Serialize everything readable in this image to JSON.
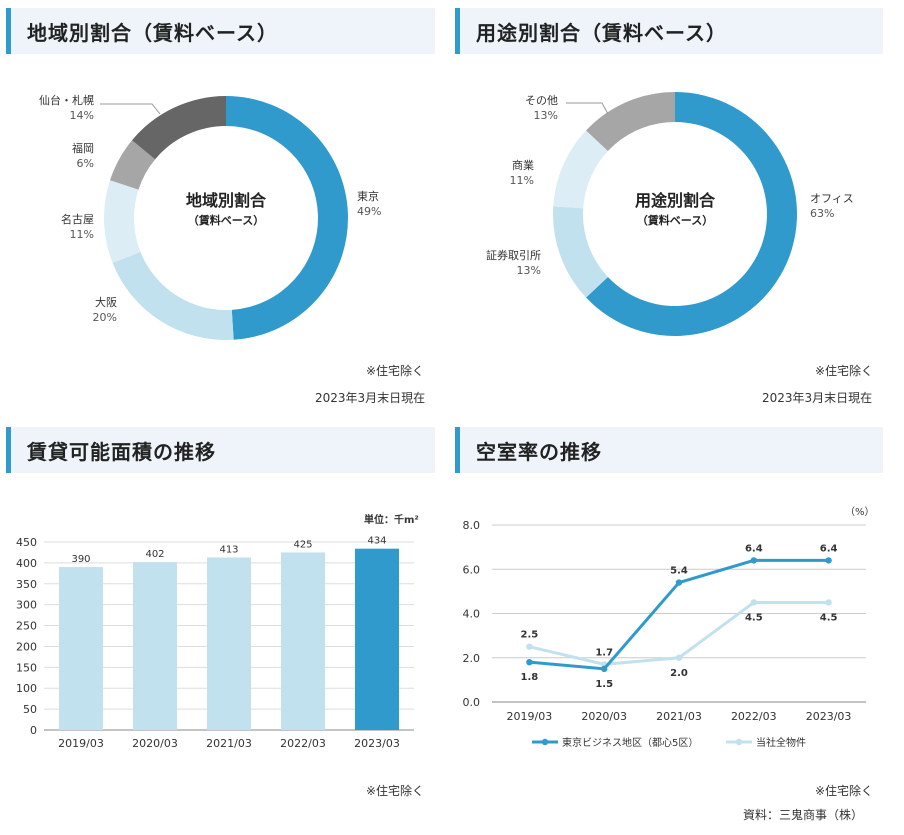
{
  "panels": {
    "region": {
      "title": "地域別割合（賃料ベース）",
      "center_title": "地域別割合",
      "center_sub": "（賃料ベース）",
      "note": "※住宅除く",
      "date": "2023年3月末日現在"
    },
    "use": {
      "title": "用途別割合（賃料ベース）",
      "center_title": "用途別割合",
      "center_sub": "（賃料ベース）",
      "note": "※住宅除く",
      "date": "2023年3月末日現在"
    },
    "area": {
      "title": "賃貸可能面積の推移",
      "unit": "単位：千m²",
      "note": "※住宅除く"
    },
    "vacancy": {
      "title": "空室率の推移",
      "unit": "（%）",
      "note": "※住宅除く",
      "source": "資料：三鬼商事（株）"
    }
  },
  "colors": {
    "accent": "#2f9acb",
    "light": "#c2e1ef",
    "lighter": "#dcedf5",
    "dark": "#666666",
    "gray": "#a6a6a6",
    "header_bg": "#eef4f9"
  },
  "chart_data": [
    {
      "type": "pie",
      "title": "地域別割合（賃料ベース）",
      "slices": [
        {
          "label": "東京",
          "value": 49,
          "display": "49%",
          "color": "#2f9acb"
        },
        {
          "label": "大阪",
          "value": 20,
          "display": "20%",
          "color": "#c2e1ef"
        },
        {
          "label": "名古屋",
          "value": 11,
          "display": "11%",
          "color": "#dcedf5"
        },
        {
          "label": "福岡",
          "value": 6,
          "display": "6%",
          "color": "#a6a6a6"
        },
        {
          "label": "仙台・札幌",
          "value": 14,
          "display": "14%",
          "color": "#666666"
        }
      ]
    },
    {
      "type": "pie",
      "title": "用途別割合（賃料ベース）",
      "slices": [
        {
          "label": "オフィス",
          "value": 63,
          "display": "63%",
          "color": "#2f9acb"
        },
        {
          "label": "証券取引所",
          "value": 13,
          "display": "13%",
          "color": "#c2e1ef"
        },
        {
          "label": "商業",
          "value": 11,
          "display": "11%",
          "color": "#dcedf5"
        },
        {
          "label": "その他",
          "value": 13,
          "display": "13%",
          "color": "#a6a6a6"
        }
      ]
    },
    {
      "type": "bar",
      "title": "賃貸可能面積の推移",
      "categories": [
        "2019/03",
        "2020/03",
        "2021/03",
        "2022/03",
        "2023/03"
      ],
      "values": [
        390,
        402,
        413,
        425,
        434
      ],
      "highlight_index": 4,
      "ylim": [
        0,
        450
      ],
      "yticks": [
        0,
        50,
        100,
        150,
        200,
        250,
        300,
        350,
        400,
        450
      ],
      "unit": "単位：千m²"
    },
    {
      "type": "line",
      "title": "空室率の推移",
      "categories": [
        "2019/03",
        "2020/03",
        "2021/03",
        "2022/03",
        "2023/03"
      ],
      "ylim": [
        0,
        8
      ],
      "yticks": [
        "0.0",
        "2.0",
        "4.0",
        "6.0",
        "8.0"
      ],
      "unit": "（%）",
      "series": [
        {
          "name": "東京ビジネス地区（都心5区）",
          "values": [
            1.8,
            1.5,
            5.4,
            6.4,
            6.4
          ],
          "labels": [
            "1.8",
            "1.5",
            "5.4",
            "6.4",
            "6.4"
          ],
          "color": "#2f9acb"
        },
        {
          "name": "当社全物件",
          "values": [
            2.5,
            1.7,
            2.0,
            4.5,
            4.5
          ],
          "labels": [
            "2.5",
            "1.7",
            "2.0",
            "4.5",
            "4.5"
          ],
          "color": "#c2e1ef"
        }
      ],
      "legend": "bottom"
    }
  ]
}
